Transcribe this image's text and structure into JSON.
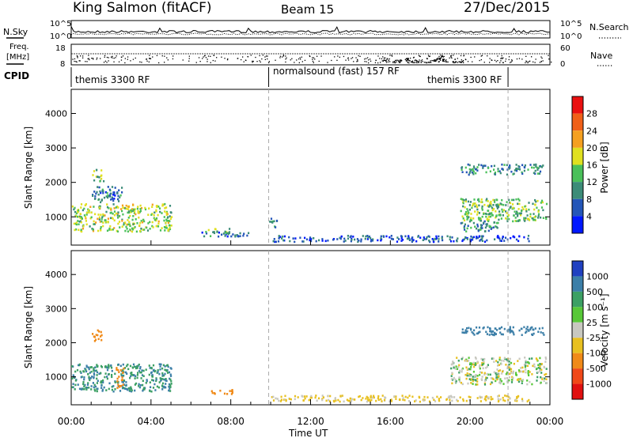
{
  "header": {
    "site": "King Salmon (fitACF)",
    "beam": "Beam 15",
    "date": "27/Dec/2015"
  },
  "noise_panel": {
    "left_label": "N.Sky",
    "right_label": "N.Search",
    "left_ticks": [
      "10^5",
      "10^0"
    ],
    "right_ticks": [
      "10^5",
      "10^0"
    ]
  },
  "freq_panel": {
    "left_label_1": "Freq.",
    "left_label_2": "[MHz]",
    "right_label": "Nave",
    "left_ticks": [
      "18",
      "8"
    ],
    "right_ticks": [
      "60",
      "0"
    ]
  },
  "cpid_panel": {
    "label": "CPID",
    "segments": [
      {
        "text": "themis 3300 RF",
        "start_hour": 0.0,
        "end_hour": 9.9
      },
      {
        "text": "normalsound (fast) 157 RF",
        "start_hour": 9.9,
        "end_hour": 21.9
      },
      {
        "text": "themis 3300 RF",
        "start_hour": 21.9,
        "end_hour": 24.0
      }
    ]
  },
  "time_axis": {
    "label": "Time UT",
    "ticks": [
      "00:00",
      "04:00",
      "08:00",
      "12:00",
      "16:00",
      "20:00",
      "00:00"
    ]
  },
  "power_panel": {
    "ylabel": "Slant Range [km]",
    "yticks": [
      "1000",
      "2000",
      "3000",
      "4000"
    ],
    "colorbar_label": "Power [dB]",
    "colorbar_ticks": [
      "4",
      "8",
      "12",
      "16",
      "20",
      "24",
      "28"
    ],
    "colors": [
      "#0018ff",
      "#2456b8",
      "#3c8c78",
      "#4ac05a",
      "#e0e020",
      "#f5a020",
      "#f06018",
      "#ea1010"
    ]
  },
  "velocity_panel": {
    "ylabel": "Slant Range [km]",
    "yticks": [
      "1000",
      "2000",
      "3000",
      "4000"
    ],
    "colorbar_label": "Velocity [m s⁻¹]",
    "colorbar_ticks": [
      "1000",
      "500",
      "100",
      "25",
      "-25",
      "-100",
      "-500",
      "-1000"
    ],
    "colors": [
      "#2040c0",
      "#3c7fa8",
      "#3ca064",
      "#58c838",
      "#c8c8c0",
      "#e8c020",
      "#f08a18",
      "#f04818",
      "#e01010"
    ]
  },
  "chart_data": [
    {
      "type": "heatmap",
      "title": "Power",
      "xlabel": "Time UT",
      "ylabel": "Slant Range [km]",
      "xlim_hours": [
        0,
        24
      ],
      "ylim_km": [
        180,
        4700
      ],
      "colorbar": {
        "label": "Power [dB]",
        "range": [
          0,
          32
        ]
      },
      "echo_regions": [
        {
          "t": [
            0.0,
            5.0
          ],
          "range_km": [
            600,
            1400
          ],
          "value_db": 16
        },
        {
          "t": [
            1.0,
            1.6
          ],
          "range_km": [
            2050,
            2400
          ],
          "value_db": 14
        },
        {
          "t": [
            1.0,
            2.5
          ],
          "range_km": [
            1450,
            1900
          ],
          "value_db": 8
        },
        {
          "t": [
            6.8,
            8.1
          ],
          "range_km": [
            550,
            680
          ],
          "value_db": 14
        },
        {
          "t": [
            6.5,
            9.0
          ],
          "range_km": [
            450,
            600
          ],
          "value_db": 8
        },
        {
          "t": [
            9.9,
            10.3
          ],
          "range_km": [
            700,
            1000
          ],
          "value_db": 10
        },
        {
          "t": [
            10.0,
            23.0
          ],
          "range_km": [
            300,
            480
          ],
          "value_db": 6
        },
        {
          "t": [
            19.5,
            23.7
          ],
          "range_km": [
            2250,
            2550
          ],
          "value_db": 10
        },
        {
          "t": [
            19.5,
            23.8
          ],
          "range_km": [
            900,
            1550
          ],
          "value_db": 14
        },
        {
          "t": [
            19.5,
            21.5
          ],
          "range_km": [
            600,
            900
          ],
          "value_db": 10
        }
      ]
    },
    {
      "type": "heatmap",
      "title": "Velocity",
      "xlabel": "Time UT",
      "ylabel": "Slant Range [km]",
      "xlim_hours": [
        0,
        24
      ],
      "ylim_km": [
        180,
        4700
      ],
      "colorbar": {
        "label": "Velocity [m s⁻¹]",
        "range": [
          -1000,
          1000
        ]
      },
      "echo_regions": [
        {
          "t": [
            0.0,
            5.0
          ],
          "range_km": [
            600,
            1400
          ],
          "value_ms": 100
        },
        {
          "t": [
            1.0,
            1.5
          ],
          "range_km": [
            2050,
            2400
          ],
          "value_ms": -300
        },
        {
          "t": [
            2.2,
            2.6
          ],
          "range_km": [
            700,
            1300
          ],
          "value_ms": -300
        },
        {
          "t": [
            6.8,
            8.1
          ],
          "range_km": [
            520,
            650
          ],
          "value_ms": -150
        },
        {
          "t": [
            10.0,
            23.0
          ],
          "range_km": [
            300,
            480
          ],
          "value_ms": -50
        },
        {
          "t": [
            19.5,
            23.7
          ],
          "range_km": [
            2250,
            2500
          ],
          "value_ms": 150
        },
        {
          "t": [
            19.0,
            23.8
          ],
          "range_km": [
            800,
            1600
          ],
          "value_ms": 0
        }
      ]
    }
  ]
}
